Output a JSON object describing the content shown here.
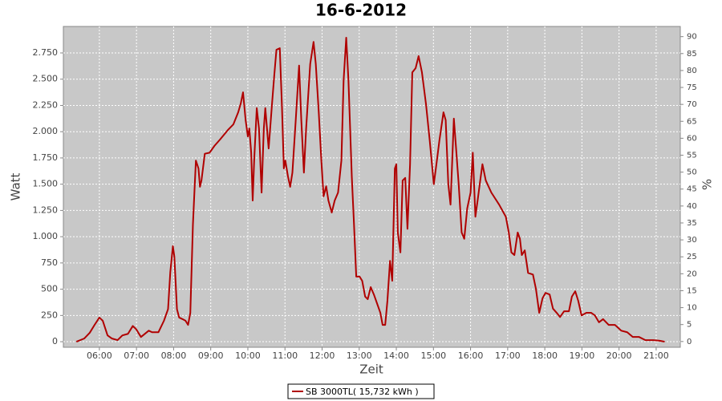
{
  "chart_data": {
    "type": "line",
    "title": "16-6-2012",
    "xlabel": "Zeit",
    "ylabel": "Watt",
    "y2label": "%",
    "grid": true,
    "legend": "bottom",
    "xlim": [
      5.03,
      21.65
    ],
    "xticks": [
      {
        "value": 6,
        "label": "06:00"
      },
      {
        "value": 7,
        "label": "07:00"
      },
      {
        "value": 8,
        "label": "08:00"
      },
      {
        "value": 9,
        "label": "09:00"
      },
      {
        "value": 10,
        "label": "10:00"
      },
      {
        "value": 11,
        "label": "11:00"
      },
      {
        "value": 12,
        "label": "12:00"
      },
      {
        "value": 13,
        "label": "13:00"
      },
      {
        "value": 14,
        "label": "14:00"
      },
      {
        "value": 15,
        "label": "15:00"
      },
      {
        "value": 16,
        "label": "16:00"
      },
      {
        "value": 17,
        "label": "17:00"
      },
      {
        "value": 18,
        "label": "18:00"
      },
      {
        "value": 19,
        "label": "19:00"
      },
      {
        "value": 20,
        "label": "20:00"
      },
      {
        "value": 21,
        "label": "21:00"
      }
    ],
    "ylim": [
      -53,
      3002
    ],
    "yticks": [
      0,
      250,
      500,
      750,
      {
        "value": 1000,
        "label": "1.000"
      },
      {
        "value": 1250,
        "label": "1.250"
      },
      {
        "value": 1500,
        "label": "1.500"
      },
      {
        "value": 1750,
        "label": "1.750"
      },
      {
        "value": 2000,
        "label": "2.000"
      },
      {
        "value": 2250,
        "label": "2.250"
      },
      {
        "value": 2500,
        "label": "2.500"
      },
      {
        "value": 2750,
        "label": "2.750"
      }
    ],
    "y2lim": [
      -1.7,
      93
    ],
    "y2ticks": [
      0,
      5,
      10,
      15,
      20,
      25,
      30,
      35,
      40,
      45,
      50,
      55,
      60,
      65,
      70,
      75,
      80,
      85,
      90
    ],
    "x": [
      5.38,
      5.59,
      5.74,
      5.87,
      6.0,
      6.09,
      6.22,
      6.34,
      6.49,
      6.62,
      6.77,
      6.9,
      6.99,
      7.12,
      7.33,
      7.42,
      7.59,
      7.74,
      7.85,
      7.91,
      7.98,
      8.02,
      8.09,
      8.15,
      8.24,
      8.32,
      8.39,
      8.45,
      8.52,
      8.6,
      8.67,
      8.71,
      8.75,
      8.84,
      8.97,
      9.1,
      9.25,
      9.46,
      9.61,
      9.74,
      9.81,
      9.87,
      9.94,
      10.0,
      10.04,
      10.09,
      10.13,
      10.17,
      10.24,
      10.3,
      10.37,
      10.43,
      10.47,
      10.56,
      10.65,
      10.71,
      10.77,
      10.86,
      10.92,
      10.97,
      11.01,
      11.08,
      11.14,
      11.2,
      11.29,
      11.38,
      11.44,
      11.51,
      11.57,
      11.68,
      11.77,
      11.83,
      11.91,
      11.98,
      12.04,
      12.11,
      12.17,
      12.26,
      12.34,
      12.43,
      12.52,
      12.58,
      12.65,
      12.71,
      12.8,
      12.86,
      12.92,
      13.01,
      13.08,
      13.16,
      13.23,
      13.31,
      13.4,
      13.48,
      13.57,
      13.63,
      13.7,
      13.76,
      13.83,
      13.89,
      13.96,
      14.0,
      14.04,
      14.11,
      14.17,
      14.24,
      14.3,
      14.37,
      14.43,
      14.52,
      14.6,
      14.69,
      14.8,
      14.9,
      15.01,
      15.08,
      15.16,
      15.27,
      15.33,
      15.4,
      15.46,
      15.55,
      15.61,
      15.68,
      15.76,
      15.83,
      15.91,
      16.0,
      16.06,
      16.13,
      16.19,
      16.26,
      16.32,
      16.41,
      16.56,
      16.77,
      16.95,
      17.03,
      17.1,
      17.18,
      17.27,
      17.33,
      17.38,
      17.46,
      17.55,
      17.68,
      17.76,
      17.85,
      17.94,
      18.02,
      18.13,
      18.22,
      18.32,
      18.41,
      18.52,
      18.65,
      18.73,
      18.82,
      18.9,
      18.99,
      19.12,
      19.25,
      19.35,
      19.46,
      19.57,
      19.72,
      19.89,
      20.06,
      20.22,
      20.37,
      20.54,
      20.71,
      20.92,
      21.08,
      21.23
    ],
    "series": [
      {
        "name": "SB 3000TL( 15,732 kWh )",
        "color": "#b00000",
        "values": [
          0,
          30,
          85,
          160,
          230,
          200,
          60,
          30,
          15,
          60,
          75,
          150,
          120,
          45,
          105,
          90,
          90,
          200,
          310,
          660,
          910,
          810,
          310,
          230,
          215,
          200,
          160,
          275,
          1115,
          1725,
          1650,
          1475,
          1535,
          1790,
          1800,
          1865,
          1925,
          2015,
          2070,
          2185,
          2270,
          2375,
          2110,
          1955,
          2030,
          1800,
          1345,
          1725,
          2225,
          2030,
          1420,
          2030,
          2225,
          1840,
          2260,
          2530,
          2780,
          2795,
          2225,
          1650,
          1725,
          1575,
          1475,
          1610,
          2110,
          2630,
          2110,
          1610,
          2030,
          2645,
          2855,
          2645,
          2185,
          1725,
          1385,
          1480,
          1345,
          1230,
          1345,
          1420,
          1725,
          2490,
          2895,
          2490,
          1575,
          1115,
          620,
          620,
          580,
          430,
          405,
          520,
          445,
          365,
          275,
          160,
          160,
          390,
          770,
          580,
          1650,
          1690,
          1040,
          850,
          1535,
          1560,
          1075,
          1690,
          2565,
          2605,
          2720,
          2565,
          2260,
          1915,
          1500,
          1690,
          1915,
          2185,
          2110,
          1500,
          1305,
          2125,
          1840,
          1500,
          1040,
          980,
          1270,
          1420,
          1800,
          1190,
          1345,
          1535,
          1690,
          1535,
          1420,
          1305,
          1190,
          1040,
          850,
          825,
          1040,
          980,
          825,
          870,
          655,
          640,
          505,
          275,
          415,
          465,
          450,
          315,
          275,
          235,
          290,
          290,
          430,
          480,
          390,
          250,
          275,
          275,
          250,
          185,
          215,
          160,
          160,
          105,
          90,
          45,
          45,
          15,
          15,
          10,
          0
        ]
      }
    ]
  }
}
